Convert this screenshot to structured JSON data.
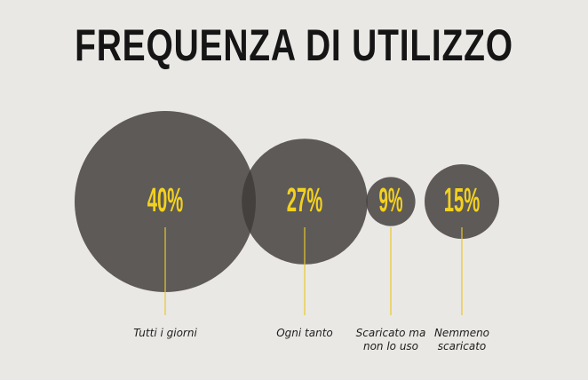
{
  "title": "FREQUENZA DI UTILIZZO",
  "chart_data": {
    "type": "bubble",
    "title": "FREQUENZA DI UTILIZZO",
    "unit": "%",
    "categories": [
      "Tutti i giorni",
      "Ogni tanto",
      "Scaricato ma non lo uso",
      "Nemmeno scaricato"
    ],
    "values": [
      40,
      27,
      9,
      15
    ],
    "value_labels": [
      "40%",
      "27%",
      "9%",
      "15%"
    ],
    "category_label_lines": [
      [
        "Tutti i giorni"
      ],
      [
        "Ogni tanto"
      ],
      [
        "Scaricato ma",
        "non lo uso"
      ],
      [
        "Nemmeno",
        "scaricato"
      ]
    ],
    "colors": {
      "bubble": "#3e3a38",
      "value_text": "#f3d11f",
      "leader": "#e8c62a",
      "background": "#eae8e5",
      "title": "#151515"
    }
  }
}
